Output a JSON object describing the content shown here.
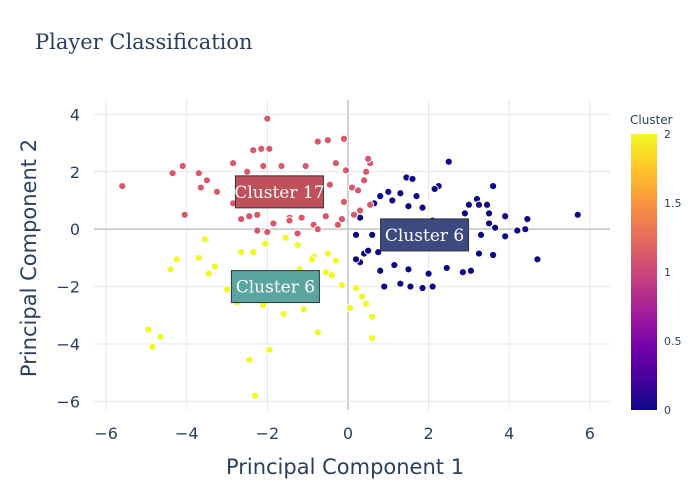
{
  "chart_data": {
    "type": "scatter",
    "title": "Player Classification",
    "xlabel": "Principal Component 1",
    "ylabel": "Principal Component 2",
    "xlim": [
      -6.3,
      6.5
    ],
    "ylim": [
      -6.3,
      4.5
    ],
    "xticks": [
      -6,
      -4,
      -2,
      0,
      2,
      4,
      6
    ],
    "yticks": [
      -6,
      -4,
      -2,
      0,
      2,
      4
    ],
    "tick_labels_x": [
      "−6",
      "−4",
      "−2",
      "0",
      "2",
      "4",
      "6"
    ],
    "tick_labels_y": [
      "−6",
      "−4",
      "−2",
      "0",
      "2",
      "4"
    ],
    "grid": true,
    "colorbar": {
      "title": "Cluster",
      "range": [
        0,
        2
      ],
      "ticks": [
        0,
        0.5,
        1,
        1.5,
        2
      ],
      "tick_labels": [
        "0",
        "0.5",
        "1",
        "1.5",
        "2"
      ],
      "colors": [
        "#0d0887",
        "#46039f",
        "#7201a8",
        "#9c179e",
        "#bd3786",
        "#d8576b",
        "#ed7953",
        "#fb9f3a",
        "#fdca26",
        "#f0f921"
      ]
    },
    "annotations": [
      {
        "text": "Cluster 17",
        "x": -1.7,
        "y": 1.3,
        "cluster": 1,
        "bg": "#c0505a"
      },
      {
        "text": "Cluster 6",
        "x": 1.9,
        "y": -0.2,
        "cluster": 0,
        "bg": "#3d4a7f"
      },
      {
        "text": "Cluster 6",
        "x": -1.8,
        "y": -2.0,
        "cluster": 2,
        "bg": "#5aa59d"
      }
    ],
    "series": [
      {
        "cluster": 0,
        "points": [
          [
            2.5,
            2.35
          ],
          [
            1.45,
            1.8
          ],
          [
            1.6,
            1.75
          ],
          [
            2.25,
            1.5
          ],
          [
            2.15,
            1.4
          ],
          [
            3.6,
            1.5
          ],
          [
            1.0,
            1.3
          ],
          [
            1.3,
            1.25
          ],
          [
            3.2,
            1.05
          ],
          [
            3.25,
            0.85
          ],
          [
            3.45,
            0.85
          ],
          [
            3.0,
            0.85
          ],
          [
            1.1,
            1.0
          ],
          [
            0.8,
            1.15
          ],
          [
            1.7,
            1.15
          ],
          [
            0.65,
            0.9
          ],
          [
            1.5,
            0.8
          ],
          [
            2.9,
            0.55
          ],
          [
            3.5,
            0.55
          ],
          [
            1.85,
            0.75
          ],
          [
            0.9,
            0.25
          ],
          [
            2.1,
            0.3
          ],
          [
            0.3,
            0.4
          ],
          [
            5.7,
            0.5
          ],
          [
            4.45,
            0.35
          ],
          [
            3.9,
            0.45
          ],
          [
            3.5,
            0.2
          ],
          [
            4.4,
            0.0
          ],
          [
            4.2,
            -0.05
          ],
          [
            3.9,
            -0.25
          ],
          [
            3.65,
            0.05
          ],
          [
            3.3,
            -0.2
          ],
          [
            2.5,
            0.05
          ],
          [
            2.7,
            -0.3
          ],
          [
            1.0,
            -0.1
          ],
          [
            0.6,
            -0.2
          ],
          [
            0.2,
            -0.2
          ],
          [
            1.45,
            -0.5
          ],
          [
            3.6,
            -0.9
          ],
          [
            3.05,
            -1.45
          ],
          [
            2.85,
            -1.5
          ],
          [
            4.7,
            -1.05
          ],
          [
            2.0,
            -1.55
          ],
          [
            2.45,
            -1.35
          ],
          [
            1.5,
            -1.4
          ],
          [
            1.15,
            -1.25
          ],
          [
            0.8,
            -1.45
          ],
          [
            0.3,
            -1.15
          ],
          [
            0.2,
            -1.05
          ],
          [
            1.3,
            -1.9
          ],
          [
            1.55,
            -2.0
          ],
          [
            0.9,
            -2.0
          ],
          [
            1.85,
            -2.05
          ],
          [
            2.1,
            -2.0
          ],
          [
            0.4,
            -0.85
          ],
          [
            0.5,
            -0.75
          ],
          [
            0.75,
            -0.8
          ],
          [
            3.25,
            -0.85
          ]
        ]
      },
      {
        "cluster": 1,
        "points": [
          [
            -2.0,
            3.85
          ],
          [
            -0.1,
            3.15
          ],
          [
            -0.5,
            3.1
          ],
          [
            -0.75,
            3.05
          ],
          [
            -2.35,
            2.75
          ],
          [
            -2.15,
            2.8
          ],
          [
            -1.95,
            2.8
          ],
          [
            -2.1,
            2.2
          ],
          [
            -1.65,
            2.2
          ],
          [
            -1.05,
            2.2
          ],
          [
            -0.3,
            2.3
          ],
          [
            0.55,
            2.3
          ],
          [
            0.5,
            2.45
          ],
          [
            0.45,
            2.0
          ],
          [
            -2.85,
            2.3
          ],
          [
            -4.1,
            2.2
          ],
          [
            -3.7,
            1.95
          ],
          [
            -4.35,
            1.95
          ],
          [
            -3.5,
            1.7
          ],
          [
            -3.65,
            1.45
          ],
          [
            -3.25,
            1.3
          ],
          [
            -5.6,
            1.5
          ],
          [
            -2.4,
            1.6
          ],
          [
            -1.75,
            1.55
          ],
          [
            -0.45,
            1.55
          ],
          [
            0.1,
            1.45
          ],
          [
            0.25,
            1.35
          ],
          [
            -2.4,
            1.0
          ],
          [
            -2.85,
            0.9
          ],
          [
            -2.05,
            0.85
          ],
          [
            -1.25,
            1.0
          ],
          [
            -0.1,
            0.95
          ],
          [
            0.3,
            0.65
          ],
          [
            0.55,
            0.85
          ],
          [
            -4.05,
            0.5
          ],
          [
            -2.45,
            0.45
          ],
          [
            -2.25,
            0.5
          ],
          [
            -1.45,
            0.4
          ],
          [
            -1.15,
            0.4
          ],
          [
            -0.55,
            0.45
          ],
          [
            0.15,
            0.5
          ],
          [
            -2.65,
            0.35
          ],
          [
            -1.85,
            0.2
          ],
          [
            -1.45,
            0.3
          ],
          [
            -0.85,
            0.15
          ],
          [
            -0.25,
            0.15
          ],
          [
            -0.75,
            0.0
          ],
          [
            -1.25,
            -0.15
          ],
          [
            -2.0,
            -0.1
          ],
          [
            -2.25,
            -0.05
          ],
          [
            -0.15,
            0.35
          ],
          [
            -2.5,
            2.0
          ],
          [
            0.4,
            1.7
          ],
          [
            -0.05,
            2.05
          ]
        ]
      },
      {
        "cluster": 2,
        "points": [
          [
            -3.55,
            -0.35
          ],
          [
            -2.65,
            -0.8
          ],
          [
            -2.35,
            -0.8
          ],
          [
            -2.05,
            -0.5
          ],
          [
            -1.55,
            -0.3
          ],
          [
            -1.25,
            -0.55
          ],
          [
            -0.85,
            -0.95
          ],
          [
            -0.5,
            -0.85
          ],
          [
            -3.7,
            -1.0
          ],
          [
            -4.25,
            -1.05
          ],
          [
            -3.3,
            -1.3
          ],
          [
            -3.45,
            -1.55
          ],
          [
            -4.4,
            -1.4
          ],
          [
            -2.8,
            -1.7
          ],
          [
            -2.45,
            -1.85
          ],
          [
            -1.8,
            -1.95
          ],
          [
            -1.35,
            -1.65
          ],
          [
            -0.9,
            -1.05
          ],
          [
            -0.55,
            -1.5
          ],
          [
            -0.4,
            -1.6
          ],
          [
            -0.15,
            -1.95
          ],
          [
            0.2,
            -2.05
          ],
          [
            0.35,
            -2.35
          ],
          [
            0.05,
            -2.75
          ],
          [
            0.45,
            -2.6
          ],
          [
            0.6,
            -3.05
          ],
          [
            -0.75,
            -3.6
          ],
          [
            -4.65,
            -3.75
          ],
          [
            -4.85,
            -4.1
          ],
          [
            -4.95,
            -3.5
          ],
          [
            0.6,
            -3.8
          ],
          [
            -1.95,
            -4.2
          ],
          [
            -2.45,
            -4.55
          ],
          [
            -2.3,
            -5.8
          ],
          [
            -1.6,
            -2.95
          ],
          [
            -1.1,
            -2.8
          ],
          [
            -2.1,
            -2.65
          ],
          [
            -3.0,
            -2.1
          ],
          [
            -0.3,
            -1.1
          ],
          [
            -2.75,
            -2.55
          ],
          [
            -1.95,
            -1.75
          ],
          [
            -1.2,
            -1.4
          ]
        ]
      }
    ]
  }
}
